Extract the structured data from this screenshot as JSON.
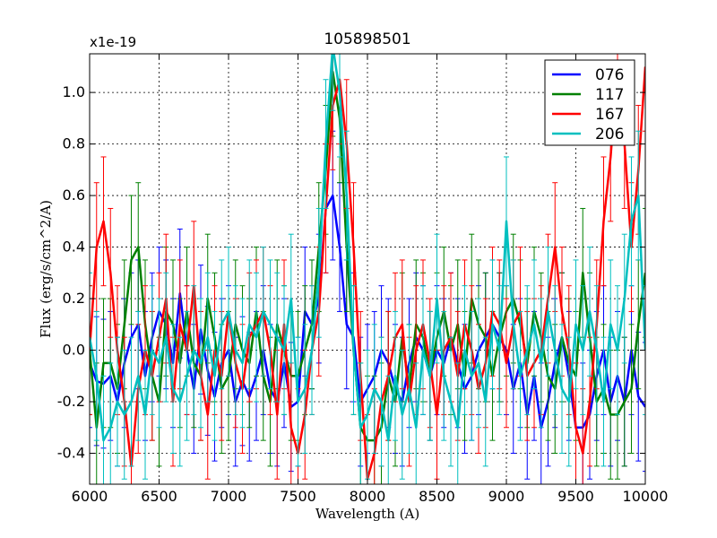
{
  "chart_data": {
    "type": "line",
    "title": "105898501",
    "xlabel": "Wavelength (A)",
    "ylabel": "Flux (erg/s/cm^2/A)",
    "offset_label": "x1e-19",
    "xlim": [
      6000,
      10000
    ],
    "ylim": [
      -0.52,
      1.15
    ],
    "xticks": [
      6000,
      6500,
      7000,
      7500,
      8000,
      8500,
      9000,
      9500,
      10000
    ],
    "xtick_labels": [
      "6000",
      "6500",
      "7000",
      "7500",
      "8000",
      "8500",
      "9000",
      "9500",
      "10000"
    ],
    "yticks": [
      -0.4,
      -0.2,
      0.0,
      0.2,
      0.4,
      0.6,
      0.8,
      1.0
    ],
    "ytick_labels": [
      "-0.4",
      "-0.2",
      "0.0",
      "0.2",
      "0.4",
      "0.6",
      "0.8",
      "1.0"
    ],
    "grid": true,
    "legend_position": "top-right",
    "x": [
      6000,
      6050,
      6100,
      6150,
      6200,
      6250,
      6300,
      6350,
      6400,
      6450,
      6500,
      6550,
      6600,
      6650,
      6700,
      6750,
      6800,
      6850,
      6900,
      6950,
      7000,
      7050,
      7100,
      7150,
      7200,
      7250,
      7300,
      7350,
      7400,
      7450,
      7500,
      7550,
      7600,
      7650,
      7700,
      7750,
      7800,
      7850,
      7900,
      7950,
      8000,
      8050,
      8100,
      8150,
      8200,
      8250,
      8300,
      8350,
      8400,
      8450,
      8500,
      8550,
      8600,
      8650,
      8700,
      8750,
      8800,
      8850,
      8900,
      8950,
      9000,
      9050,
      9100,
      9150,
      9200,
      9250,
      9300,
      9350,
      9400,
      9450,
      9500,
      9550,
      9600,
      9650,
      9700,
      9750,
      9800,
      9850,
      9900,
      9950,
      10000
    ],
    "series": [
      {
        "name": "076",
        "color": "#0000ff",
        "values": [
          -0.05,
          -0.12,
          -0.13,
          -0.1,
          -0.2,
          -0.05,
          0.05,
          0.1,
          -0.1,
          0.05,
          0.15,
          0.1,
          -0.05,
          0.22,
          0.0,
          -0.15,
          0.08,
          -0.08,
          -0.18,
          -0.05,
          0.0,
          -0.2,
          -0.12,
          -0.18,
          -0.1,
          0.0,
          -0.15,
          -0.2,
          -0.05,
          -0.22,
          -0.2,
          0.15,
          0.1,
          0.2,
          0.55,
          0.6,
          0.4,
          0.1,
          0.05,
          -0.2,
          -0.15,
          -0.1,
          0.0,
          -0.05,
          -0.15,
          -0.2,
          -0.05,
          0.05,
          0.0,
          -0.1,
          0.0,
          -0.05,
          0.05,
          -0.05,
          -0.15,
          -0.1,
          0.0,
          0.05,
          0.1,
          0.05,
          0.0,
          -0.15,
          -0.05,
          -0.25,
          -0.1,
          -0.3,
          -0.2,
          -0.05,
          0.05,
          -0.1,
          -0.3,
          -0.3,
          -0.25,
          -0.1,
          0.0,
          -0.2,
          -0.1,
          -0.2,
          0.0,
          -0.18,
          -0.22
        ],
        "errors": [
          0.25,
          0.25,
          0.25,
          0.25,
          0.25,
          0.25,
          0.25,
          0.25,
          0.25,
          0.25,
          0.25,
          0.25,
          0.25,
          0.25,
          0.25,
          0.25,
          0.25,
          0.25,
          0.25,
          0.25,
          0.25,
          0.25,
          0.25,
          0.25,
          0.25,
          0.25,
          0.25,
          0.25,
          0.25,
          0.25,
          0.25,
          0.25,
          0.25,
          0.25,
          0.25,
          0.25,
          0.25,
          0.25,
          0.25,
          0.25,
          0.25,
          0.25,
          0.25,
          0.25,
          0.25,
          0.25,
          0.25,
          0.25,
          0.25,
          0.25,
          0.25,
          0.25,
          0.25,
          0.25,
          0.25,
          0.25,
          0.25,
          0.25,
          0.25,
          0.25,
          0.25,
          0.25,
          0.25,
          0.25,
          0.25,
          0.25,
          0.25,
          0.25,
          0.25,
          0.25,
          0.25,
          0.25,
          0.25,
          0.25,
          0.25,
          0.25,
          0.25,
          0.25,
          0.25,
          0.25,
          0.25
        ]
      },
      {
        "name": "117",
        "color": "#008000",
        "values": [
          0.0,
          -0.3,
          -0.05,
          -0.05,
          -0.15,
          0.1,
          0.35,
          0.4,
          0.1,
          -0.1,
          -0.2,
          0.15,
          0.1,
          -0.05,
          0.15,
          -0.05,
          -0.1,
          0.2,
          0.05,
          -0.15,
          -0.1,
          0.1,
          0.0,
          -0.05,
          0.15,
          -0.1,
          -0.2,
          0.1,
          0.0,
          -0.1,
          -0.1,
          0.0,
          0.1,
          0.4,
          0.7,
          1.08,
          0.9,
          0.4,
          0.0,
          -0.3,
          -0.35,
          -0.35,
          -0.3,
          -0.1,
          -0.2,
          0.05,
          -0.15,
          0.1,
          0.05,
          -0.1,
          0.05,
          0.15,
          0.0,
          0.1,
          -0.1,
          0.2,
          0.1,
          0.05,
          -0.1,
          0.05,
          0.15,
          0.2,
          0.1,
          -0.05,
          0.15,
          0.05,
          -0.1,
          -0.15,
          0.05,
          -0.05,
          -0.1,
          0.3,
          0.05,
          -0.2,
          -0.15,
          -0.25,
          -0.25,
          -0.2,
          -0.15,
          0.1,
          0.3
        ],
        "errors": [
          0.25,
          0.25,
          0.25,
          0.25,
          0.25,
          0.25,
          0.25,
          0.25,
          0.25,
          0.25,
          0.25,
          0.25,
          0.25,
          0.25,
          0.25,
          0.25,
          0.25,
          0.25,
          0.25,
          0.25,
          0.25,
          0.25,
          0.25,
          0.25,
          0.25,
          0.25,
          0.25,
          0.25,
          0.25,
          0.25,
          0.25,
          0.25,
          0.25,
          0.25,
          0.25,
          0.25,
          0.25,
          0.25,
          0.25,
          0.25,
          0.25,
          0.25,
          0.25,
          0.25,
          0.25,
          0.25,
          0.25,
          0.25,
          0.25,
          0.25,
          0.25,
          0.25,
          0.25,
          0.25,
          0.25,
          0.25,
          0.25,
          0.25,
          0.25,
          0.25,
          0.25,
          0.25,
          0.25,
          0.25,
          0.25,
          0.25,
          0.25,
          0.25,
          0.25,
          0.25,
          0.25,
          0.25,
          0.25,
          0.25,
          0.25,
          0.25,
          0.25,
          0.25,
          0.25,
          0.25,
          0.25
        ]
      },
      {
        "name": "167",
        "color": "#ff0000",
        "values": [
          0.0,
          0.4,
          0.5,
          0.3,
          0.0,
          -0.2,
          -0.45,
          -0.15,
          0.0,
          -0.1,
          0.05,
          0.2,
          -0.2,
          0.1,
          0.0,
          0.25,
          -0.1,
          -0.25,
          0.0,
          -0.1,
          0.15,
          -0.05,
          -0.15,
          0.05,
          0.1,
          0.15,
          0.0,
          -0.25,
          0.1,
          -0.3,
          -0.4,
          -0.25,
          0.0,
          0.15,
          0.55,
          0.95,
          1.05,
          0.8,
          0.4,
          -0.1,
          -0.5,
          -0.4,
          -0.2,
          -0.1,
          0.05,
          0.1,
          -0.2,
          0.0,
          0.1,
          -0.05,
          -0.25,
          0.0,
          0.05,
          -0.1,
          0.1,
          0.0,
          -0.15,
          -0.05,
          0.15,
          0.1,
          -0.05,
          0.1,
          0.15,
          -0.1,
          -0.05,
          0.0,
          0.2,
          0.4,
          0.15,
          0.0,
          -0.3,
          -0.4,
          -0.2,
          0.1,
          0.5,
          0.75,
          1.1,
          0.8,
          0.4,
          0.7,
          1.1
        ],
        "errors": [
          0.25,
          0.25,
          0.25,
          0.25,
          0.25,
          0.25,
          0.25,
          0.25,
          0.25,
          0.25,
          0.25,
          0.25,
          0.25,
          0.25,
          0.25,
          0.25,
          0.25,
          0.25,
          0.25,
          0.25,
          0.25,
          0.25,
          0.25,
          0.25,
          0.25,
          0.25,
          0.25,
          0.25,
          0.25,
          0.25,
          0.25,
          0.25,
          0.25,
          0.25,
          0.25,
          0.25,
          0.25,
          0.25,
          0.25,
          0.25,
          0.25,
          0.25,
          0.25,
          0.25,
          0.25,
          0.25,
          0.25,
          0.25,
          0.25,
          0.25,
          0.25,
          0.25,
          0.25,
          0.25,
          0.25,
          0.25,
          0.25,
          0.25,
          0.25,
          0.25,
          0.25,
          0.25,
          0.25,
          0.25,
          0.25,
          0.25,
          0.25,
          0.25,
          0.25,
          0.25,
          0.25,
          0.25,
          0.25,
          0.25,
          0.25,
          0.25,
          0.25,
          0.25,
          0.25,
          0.25,
          0.25
        ]
      },
      {
        "name": "206",
        "color": "#00bfbf",
        "values": [
          0.05,
          -0.1,
          -0.35,
          -0.3,
          -0.2,
          -0.25,
          -0.2,
          -0.1,
          -0.25,
          0.0,
          -0.05,
          0.05,
          -0.15,
          -0.2,
          -0.1,
          0.0,
          -0.05,
          0.05,
          -0.1,
          0.1,
          0.15,
          0.0,
          -0.05,
          0.1,
          0.05,
          0.15,
          0.1,
          0.05,
          0.0,
          0.2,
          -0.2,
          -0.15,
          0.0,
          0.3,
          0.8,
          1.18,
          1.0,
          0.6,
          0.0,
          -0.3,
          -0.25,
          -0.15,
          -0.2,
          -0.35,
          -0.1,
          -0.25,
          -0.15,
          -0.3,
          0.0,
          -0.1,
          0.2,
          -0.1,
          -0.2,
          -0.3,
          0.0,
          -0.1,
          -0.05,
          -0.2,
          0.1,
          0.0,
          0.5,
          0.1,
          -0.1,
          0.0,
          0.1,
          -0.05,
          0.15,
          0.0,
          -0.15,
          -0.2,
          0.1,
          0.0,
          0.15,
          0.0,
          -0.2,
          0.1,
          0.0,
          0.2,
          0.5,
          0.6,
          0.0
        ],
        "errors": [
          0.25,
          0.25,
          0.25,
          0.25,
          0.25,
          0.25,
          0.25,
          0.25,
          0.25,
          0.25,
          0.25,
          0.25,
          0.25,
          0.25,
          0.25,
          0.25,
          0.25,
          0.25,
          0.25,
          0.25,
          0.25,
          0.25,
          0.25,
          0.25,
          0.25,
          0.25,
          0.25,
          0.25,
          0.25,
          0.25,
          0.25,
          0.25,
          0.25,
          0.25,
          0.25,
          0.25,
          0.25,
          0.25,
          0.25,
          0.25,
          0.25,
          0.25,
          0.25,
          0.25,
          0.25,
          0.25,
          0.25,
          0.25,
          0.25,
          0.25,
          0.25,
          0.25,
          0.25,
          0.25,
          0.25,
          0.25,
          0.25,
          0.25,
          0.25,
          0.25,
          0.25,
          0.25,
          0.25,
          0.25,
          0.25,
          0.25,
          0.25,
          0.25,
          0.25,
          0.25,
          0.25,
          0.25,
          0.25,
          0.25,
          0.25,
          0.25,
          0.25,
          0.25,
          0.25,
          0.25,
          0.25
        ]
      }
    ]
  }
}
